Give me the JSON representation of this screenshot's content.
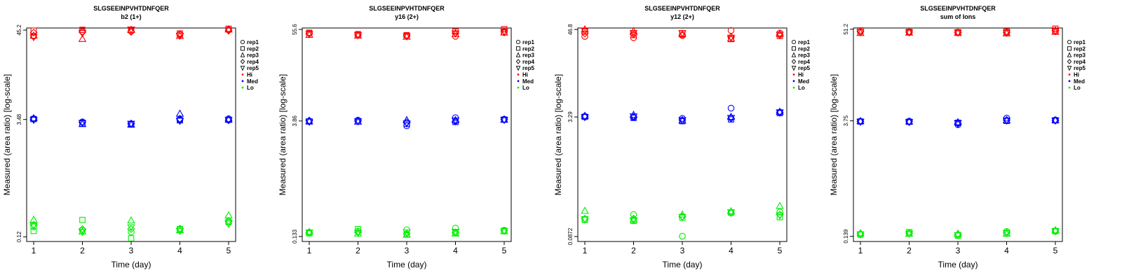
{
  "chart_data": [
    {
      "type": "scatter",
      "title": "SLGSEEINPVHTDNFQER",
      "subtitle": "b2 (1+)",
      "xlabel": "Time (day)",
      "ylabel": "Measured (area ratio) [log-scale]",
      "x": [
        1,
        2,
        3,
        4,
        5
      ],
      "x_ticks": [
        "1",
        "2",
        "3",
        "4",
        "5"
      ],
      "y_ticks": [
        "0.12",
        "3.48",
        "45.2"
      ],
      "y_tick_values": [
        0.12,
        3.48,
        45.2
      ],
      "ylim": [
        0.105,
        48
      ],
      "series": [
        {
          "level": "Hi",
          "rep": "rep1",
          "values": [
            38.0,
            43.5,
            44.0,
            39.5,
            45.8
          ]
        },
        {
          "level": "Hi",
          "rep": "rep2",
          "values": [
            44.5,
            45.5,
            45.2,
            41.0,
            47.0
          ]
        },
        {
          "level": "Hi",
          "rep": "rep3",
          "values": [
            38.5,
            35.0,
            45.5,
            38.2,
            46.0
          ]
        },
        {
          "level": "Hi",
          "rep": "rep4",
          "values": [
            42.0,
            42.5,
            43.0,
            40.5,
            44.5
          ]
        },
        {
          "level": "Hi",
          "rep": "rep5",
          "values": [
            37.0,
            41.5,
            46.0,
            38.5,
            45.0
          ]
        },
        {
          "level": "Med",
          "rep": "rep1",
          "values": [
            3.55,
            3.25,
            3.05,
            3.45,
            3.55
          ]
        },
        {
          "level": "Med",
          "rep": "rep2",
          "values": [
            3.52,
            3.1,
            3.02,
            3.4,
            3.45
          ]
        },
        {
          "level": "Med",
          "rep": "rep3",
          "values": [
            3.6,
            3.05,
            3.0,
            4.1,
            3.48
          ]
        },
        {
          "level": "Med",
          "rep": "rep4",
          "values": [
            3.5,
            3.2,
            3.1,
            3.55,
            3.4
          ]
        },
        {
          "level": "Med",
          "rep": "rep5",
          "values": [
            3.45,
            3.15,
            3.08,
            3.35,
            3.42
          ]
        },
        {
          "level": "Lo",
          "rep": "rep1",
          "values": [
            0.16,
            0.145,
            0.138,
            0.148,
            0.18
          ]
        },
        {
          "level": "Lo",
          "rep": "rep2",
          "values": [
            0.142,
            0.195,
            0.115,
            0.15,
            0.185
          ]
        },
        {
          "level": "Lo",
          "rep": "rep3",
          "values": [
            0.196,
            0.14,
            0.192,
            0.145,
            0.222
          ]
        },
        {
          "level": "Lo",
          "rep": "rep4",
          "values": [
            0.17,
            0.15,
            0.15,
            0.152,
            0.19
          ]
        },
        {
          "level": "Lo",
          "rep": "rep5",
          "values": [
            0.165,
            0.138,
            0.158,
            0.142,
            0.175
          ]
        }
      ]
    },
    {
      "type": "scatter",
      "title": "SLGSEEINPVHTDNFQER",
      "subtitle": "y16 (2+)",
      "xlabel": "Time (day)",
      "ylabel": "Measured (area ratio) [log-scale]",
      "x": [
        1,
        2,
        3,
        4,
        5
      ],
      "x_ticks": [
        "1",
        "2",
        "3",
        "4",
        "5"
      ],
      "y_ticks": [
        "0.133",
        "3.86",
        "55.6"
      ],
      "y_tick_values": [
        0.133,
        3.86,
        55.6
      ],
      "ylim": [
        0.115,
        58
      ],
      "series": [
        {
          "level": "Hi",
          "rep": "rep1",
          "values": [
            50.0,
            47.5,
            46.5,
            45.5,
            50.5
          ]
        },
        {
          "level": "Hi",
          "rep": "rep2",
          "values": [
            50.5,
            48.5,
            47.0,
            52.5,
            56.0
          ]
        },
        {
          "level": "Hi",
          "rep": "rep3",
          "values": [
            47.5,
            46.5,
            45.0,
            48.5,
            51.0
          ]
        },
        {
          "level": "Hi",
          "rep": "rep4",
          "values": [
            49.0,
            47.5,
            46.0,
            50.0,
            53.0
          ]
        },
        {
          "level": "Hi",
          "rep": "rep5",
          "values": [
            48.5,
            47.0,
            45.5,
            49.5,
            52.0
          ]
        },
        {
          "level": "Med",
          "rep": "rep1",
          "values": [
            3.85,
            3.95,
            3.35,
            4.25,
            4.05
          ]
        },
        {
          "level": "Med",
          "rep": "rep2",
          "values": [
            3.8,
            3.8,
            3.55,
            3.75,
            4.02
          ]
        },
        {
          "level": "Med",
          "rep": "rep3",
          "values": [
            3.82,
            3.78,
            3.95,
            3.95,
            4.0
          ]
        },
        {
          "level": "Med",
          "rep": "rep4",
          "values": [
            3.9,
            3.85,
            3.7,
            3.8,
            4.05
          ]
        },
        {
          "level": "Med",
          "rep": "rep5",
          "values": [
            3.78,
            3.82,
            3.6,
            3.9,
            3.98
          ]
        },
        {
          "level": "Lo",
          "rep": "rep1",
          "values": [
            0.15,
            0.155,
            0.162,
            0.17,
            0.16
          ]
        },
        {
          "level": "Lo",
          "rep": "rep2",
          "values": [
            0.146,
            0.165,
            0.142,
            0.148,
            0.157
          ]
        },
        {
          "level": "Lo",
          "rep": "rep3",
          "values": [
            0.152,
            0.145,
            0.14,
            0.145,
            0.155
          ]
        },
        {
          "level": "Lo",
          "rep": "rep4",
          "values": [
            0.148,
            0.15,
            0.145,
            0.15,
            0.158
          ]
        },
        {
          "level": "Lo",
          "rep": "rep5",
          "values": [
            0.15,
            0.148,
            0.15,
            0.152,
            0.156
          ]
        }
      ]
    },
    {
      "type": "scatter",
      "title": "SLGSEEINPVHTDNFQER",
      "subtitle": "y12 (2+)",
      "xlabel": "Time (day)",
      "ylabel": "Measured (area ratio) [log-scale]",
      "x": [
        1,
        2,
        3,
        4,
        5
      ],
      "x_ticks": [
        "1",
        "2",
        "3",
        "4",
        "5"
      ],
      "y_ticks": [
        "0.0872",
        "3.29",
        "46.8"
      ],
      "y_tick_values": [
        0.0872,
        3.29,
        46.8
      ],
      "ylim": [
        0.075,
        49
      ],
      "series": [
        {
          "level": "Hi",
          "rep": "rep1",
          "values": [
            38.0,
            36.5,
            39.0,
            45.5,
            42.0
          ]
        },
        {
          "level": "Hi",
          "rep": "rep2",
          "values": [
            44.0,
            39.5,
            41.5,
            35.0,
            38.5
          ]
        },
        {
          "level": "Hi",
          "rep": "rep3",
          "values": [
            47.0,
            44.5,
            40.5,
            35.5,
            41.0
          ]
        },
        {
          "level": "Hi",
          "rep": "rep4",
          "values": [
            41.5,
            40.5,
            39.5,
            37.5,
            39.5
          ]
        },
        {
          "level": "Hi",
          "rep": "rep5",
          "values": [
            45.0,
            42.0,
            42.0,
            36.5,
            40.0
          ]
        },
        {
          "level": "Med",
          "rep": "rep1",
          "values": [
            3.35,
            3.25,
            3.15,
            4.3,
            3.8
          ]
        },
        {
          "level": "Med",
          "rep": "rep2",
          "values": [
            3.3,
            3.2,
            2.9,
            3.05,
            3.7
          ]
        },
        {
          "level": "Med",
          "rep": "rep3",
          "values": [
            3.4,
            3.5,
            2.95,
            3.3,
            3.85
          ]
        },
        {
          "level": "Med",
          "rep": "rep4",
          "values": [
            3.32,
            3.3,
            3.0,
            3.15,
            3.75
          ]
        },
        {
          "level": "Med",
          "rep": "rep5",
          "values": [
            3.28,
            3.35,
            2.98,
            3.2,
            3.78
          ]
        },
        {
          "level": "Lo",
          "rep": "rep1",
          "values": [
            0.145,
            0.17,
            0.088,
            0.18,
            0.183
          ]
        },
        {
          "level": "Lo",
          "rep": "rep2",
          "values": [
            0.145,
            0.14,
            0.155,
            0.18,
            0.157
          ]
        },
        {
          "level": "Lo",
          "rep": "rep3",
          "values": [
            0.19,
            0.145,
            0.17,
            0.188,
            0.22
          ]
        },
        {
          "level": "Lo",
          "rep": "rep4",
          "values": [
            0.15,
            0.15,
            0.16,
            0.178,
            0.17
          ]
        },
        {
          "level": "Lo",
          "rep": "rep5",
          "values": [
            0.148,
            0.143,
            0.158,
            0.182,
            0.165
          ]
        }
      ]
    },
    {
      "type": "scatter",
      "title": "SLGSEEINPVHTDNFQER",
      "subtitle": "sum of Ions",
      "xlabel": "Time (day)",
      "ylabel": "Measured (area ratio) [log-scale]",
      "x": [
        1,
        2,
        3,
        4,
        5
      ],
      "x_ticks": [
        "1",
        "2",
        "3",
        "4",
        "5"
      ],
      "y_ticks": [
        "0.139",
        "3.75",
        "51.2"
      ],
      "y_tick_values": [
        0.139,
        3.75,
        51.2
      ],
      "ylim": [
        0.12,
        53
      ],
      "series": [
        {
          "level": "Hi",
          "rep": "rep1",
          "values": [
            47.5,
            47.0,
            46.5,
            46.0,
            48.0
          ]
        },
        {
          "level": "Hi",
          "rep": "rep2",
          "values": [
            49.5,
            47.5,
            47.0,
            48.0,
            52.0
          ]
        },
        {
          "level": "Hi",
          "rep": "rep3",
          "values": [
            46.0,
            46.5,
            46.0,
            45.5,
            47.5
          ]
        },
        {
          "level": "Hi",
          "rep": "rep4",
          "values": [
            48.0,
            47.2,
            46.8,
            47.0,
            49.5
          ]
        },
        {
          "level": "Hi",
          "rep": "rep5",
          "values": [
            47.0,
            46.8,
            46.4,
            46.5,
            48.5
          ]
        },
        {
          "level": "Med",
          "rep": "rep1",
          "values": [
            3.7,
            3.7,
            3.35,
            4.05,
            3.85
          ]
        },
        {
          "level": "Med",
          "rep": "rep2",
          "values": [
            3.68,
            3.65,
            3.55,
            3.75,
            3.8
          ]
        },
        {
          "level": "Med",
          "rep": "rep3",
          "values": [
            3.72,
            3.68,
            3.6,
            3.8,
            3.82
          ]
        },
        {
          "level": "Med",
          "rep": "rep4",
          "values": [
            3.7,
            3.7,
            3.45,
            3.85,
            3.8
          ]
        },
        {
          "level": "Med",
          "rep": "rep5",
          "values": [
            3.66,
            3.62,
            3.5,
            3.78,
            3.78
          ]
        },
        {
          "level": "Lo",
          "rep": "rep1",
          "values": [
            0.148,
            0.152,
            0.145,
            0.16,
            0.16
          ]
        },
        {
          "level": "Lo",
          "rep": "rep2",
          "values": [
            0.146,
            0.157,
            0.142,
            0.152,
            0.162
          ]
        },
        {
          "level": "Lo",
          "rep": "rep3",
          "values": [
            0.152,
            0.15,
            0.15,
            0.15,
            0.165
          ]
        },
        {
          "level": "Lo",
          "rep": "rep4",
          "values": [
            0.15,
            0.152,
            0.146,
            0.155,
            0.163
          ]
        },
        {
          "level": "Lo",
          "rep": "rep5",
          "values": [
            0.147,
            0.15,
            0.144,
            0.153,
            0.161
          ]
        }
      ]
    }
  ],
  "legend": {
    "entries": [
      {
        "label": "rep1",
        "symbol": "circle"
      },
      {
        "label": "rep2",
        "symbol": "square"
      },
      {
        "label": "rep3",
        "symbol": "triangle-up"
      },
      {
        "label": "rep4",
        "symbol": "diamond"
      },
      {
        "label": "rep5",
        "symbol": "triangle-down"
      },
      {
        "label": "Hi",
        "symbol": "dot"
      },
      {
        "label": "Med",
        "symbol": "dot"
      },
      {
        "label": "Lo",
        "symbol": "dot"
      }
    ],
    "level_colors": {
      "Hi": "#ff0000",
      "Med": "#0000ff",
      "Lo": "#00ee00"
    },
    "placement": "right"
  }
}
